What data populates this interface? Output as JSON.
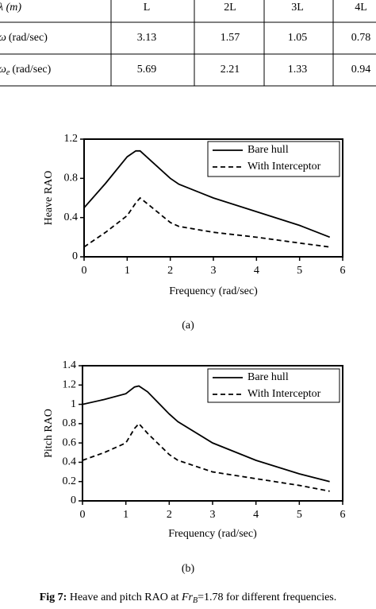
{
  "table": {
    "header": [
      "λ (m)",
      "L",
      "2L",
      "3L",
      "4L"
    ],
    "rows": [
      {
        "symbol": "ω",
        "unit": "(rad/sec)",
        "values": [
          3.13,
          1.57,
          1.05,
          0.78
        ]
      },
      {
        "symbol": "ω",
        "subscript": "e",
        "unit": "(rad/sec)",
        "values": [
          5.69,
          2.21,
          1.33,
          0.94
        ]
      }
    ]
  },
  "chart_data": [
    {
      "type": "line",
      "xlabel": "Frequency (rad/sec)",
      "ylabel": "Heave RAO",
      "caption": "(a)",
      "x": [
        0,
        0.5,
        1.0,
        1.2,
        1.3,
        1.5,
        2,
        2.2,
        3,
        4,
        5,
        5.7
      ],
      "series": [
        {
          "name": "Bare hull",
          "color": "#000000",
          "line_style": "solid",
          "values": [
            0.5,
            0.75,
            1.02,
            1.08,
            1.08,
            1.0,
            0.8,
            0.74,
            0.6,
            0.46,
            0.32,
            0.2
          ]
        },
        {
          "name": "With Interceptor",
          "color": "#000000",
          "line_style": "dashed",
          "values": [
            0.1,
            0.25,
            0.42,
            0.55,
            0.6,
            0.53,
            0.35,
            0.31,
            0.25,
            0.2,
            0.14,
            0.1
          ]
        }
      ],
      "xlim": [
        0,
        6
      ],
      "xticks": [
        0,
        1,
        2,
        3,
        4,
        5,
        6
      ],
      "ylim": [
        0,
        1.2
      ],
      "yticks": [
        0,
        0.4,
        0.8,
        1.2
      ],
      "legend": "upper right"
    },
    {
      "type": "line",
      "xlabel": "Frequency (rad/sec)",
      "ylabel": "Pitch RAO",
      "caption": "(b)",
      "x": [
        0,
        0.5,
        1.0,
        1.2,
        1.3,
        1.5,
        2,
        2.2,
        3,
        4,
        5,
        5.7
      ],
      "series": [
        {
          "name": "Bare hull",
          "color": "#000000",
          "line_style": "solid",
          "values": [
            1.0,
            1.05,
            1.11,
            1.18,
            1.19,
            1.13,
            0.9,
            0.82,
            0.6,
            0.42,
            0.28,
            0.2
          ]
        },
        {
          "name": "With Interceptor",
          "color": "#000000",
          "line_style": "dashed",
          "values": [
            0.42,
            0.5,
            0.6,
            0.75,
            0.8,
            0.7,
            0.48,
            0.42,
            0.3,
            0.23,
            0.16,
            0.1
          ]
        }
      ],
      "xlim": [
        0,
        6
      ],
      "xticks": [
        0,
        1,
        2,
        3,
        4,
        5,
        6
      ],
      "ylim": [
        0,
        1.4
      ],
      "yticks": [
        0,
        0.2,
        0.4,
        0.6,
        0.8,
        1,
        1.2,
        1.4
      ],
      "legend": "upper right"
    }
  ],
  "caption": {
    "label": "Fig 7:",
    "text": " Heave and pitch RAO at ",
    "symbol": "Fr",
    "subscript": "B",
    "rest": "=1.78 for different frequencies."
  }
}
